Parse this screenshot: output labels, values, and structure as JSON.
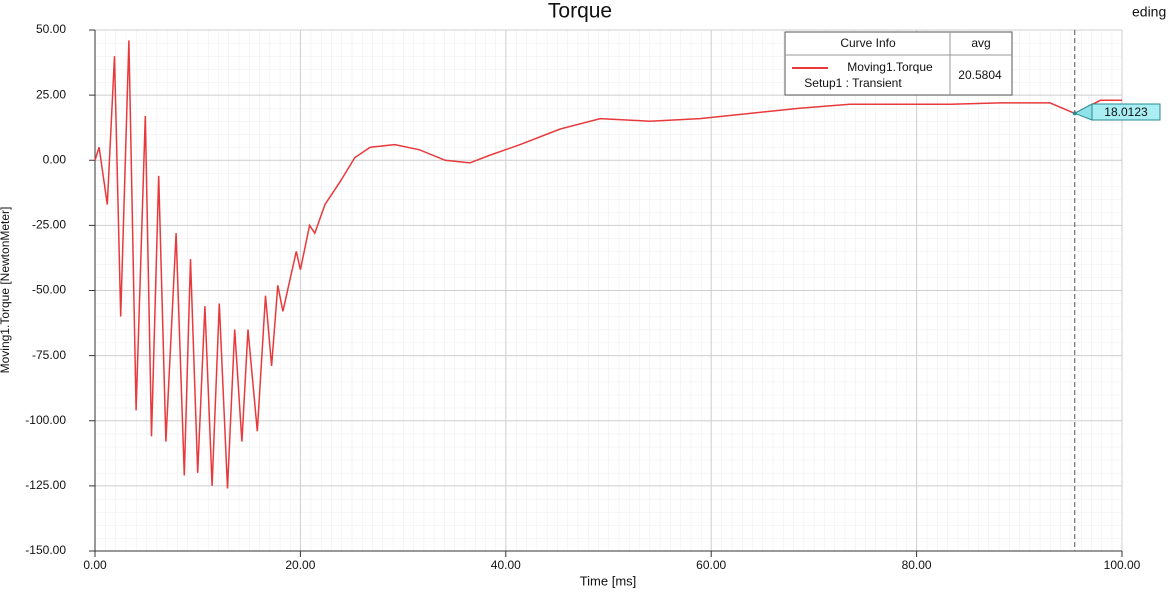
{
  "chart_data": {
    "type": "line",
    "title": "Torque",
    "corner_text": "eding",
    "x_label": "Time [ms]",
    "y_label": "Moving1.Torque [NewtonMeter]",
    "x": [
      0,
      0.4,
      1.2,
      1.9,
      2.5,
      3.3,
      4.0,
      4.9,
      5.5,
      6.2,
      6.9,
      7.9,
      8.7,
      9.3,
      10.0,
      10.7,
      11.4,
      12.1,
      12.9,
      13.6,
      14.3,
      14.9,
      15.8,
      16.6,
      17.2,
      17.8,
      18.3,
      19.6,
      20.0,
      20.9,
      21.4,
      22.4,
      23.9,
      25.3,
      26.8,
      29.2,
      31.6,
      34.1,
      36.5,
      38.5,
      41.4,
      45.3,
      49.2,
      54.0,
      58.9,
      63.8,
      68.6,
      73.5,
      78.4,
      83.3,
      88.1,
      93.0,
      95.4,
      97.9,
      100
    ],
    "series": [
      {
        "name": "Moving1.Torque",
        "setup": "Setup1 : Transient",
        "avg": 20.5804,
        "color": "#e8393c",
        "values": [
          0,
          5,
          -17,
          40,
          -60,
          46,
          -96,
          17,
          -106,
          -6,
          -108,
          -28,
          -121,
          -38,
          -120,
          -56,
          -125,
          -55,
          -126,
          -65,
          -108,
          -65,
          -104,
          -52,
          -79,
          -48,
          -58,
          -35,
          -42,
          -25,
          -28,
          -17,
          -8,
          1,
          5,
          6,
          4,
          0,
          -1,
          2,
          6,
          12,
          16,
          15,
          16,
          18,
          20,
          21.5,
          21.5,
          21.5,
          22,
          22,
          18,
          23,
          23
        ]
      }
    ],
    "legend_header": {
      "name": "Curve Info",
      "stat": "avg"
    },
    "marker": {
      "x": 95.4,
      "value": 18.0123
    },
    "xlim": [
      0,
      100
    ],
    "xticks": [
      {
        "value": 0,
        "label": "0.00"
      },
      {
        "value": 20,
        "label": "20.00"
      },
      {
        "value": 40,
        "label": "40.00"
      },
      {
        "value": 60,
        "label": "60.00"
      },
      {
        "value": 80,
        "label": "80.00"
      },
      {
        "value": 100,
        "label": "100.00"
      }
    ],
    "ylim": [
      -150,
      50
    ],
    "yticks": [
      {
        "value": 50,
        "label": "50.00"
      },
      {
        "value": 25,
        "label": "25.00"
      },
      {
        "value": 0,
        "label": "0.00"
      },
      {
        "value": -25,
        "label": "-25.00"
      },
      {
        "value": -50,
        "label": "-50.00"
      },
      {
        "value": -75,
        "label": "-75.00"
      },
      {
        "value": -100,
        "label": "-100.00"
      },
      {
        "value": -125,
        "label": "-125.00"
      },
      {
        "value": -150,
        "label": "-150.00"
      }
    ],
    "grid": true
  }
}
